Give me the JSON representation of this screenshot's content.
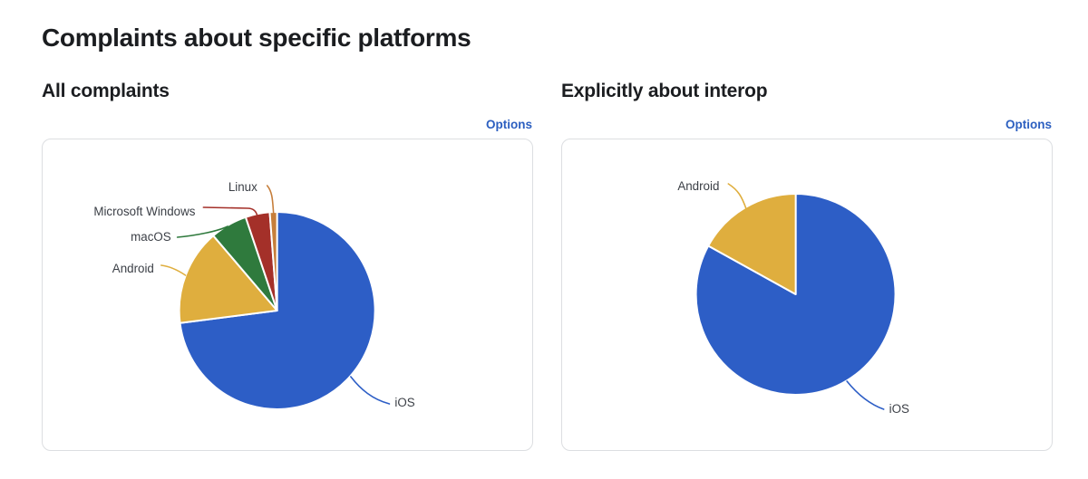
{
  "page": {
    "title": "Complaints about specific platforms"
  },
  "sections": [
    {
      "title": "All complaints",
      "options_label": "Options"
    },
    {
      "title": "Explicitly about interop",
      "options_label": "Options"
    }
  ],
  "colors": {
    "link_blue": "#2c5fc0",
    "ios_blue": "#2d5ec6",
    "android_yellow": "#dfae3e",
    "macos_green": "#2f7a3d",
    "windows_red": "#a43029",
    "linux_orange": "#c67e3b",
    "card_border": "#dcdee1",
    "label_text": "#3b3f46"
  },
  "chart_data": [
    {
      "type": "pie",
      "title": "All complaints",
      "units": "percent (estimated from arc angles)",
      "start_angle": "12 o'clock, clockwise",
      "legend_position": "outside labels with leader lines",
      "slices": [
        {
          "label": "iOS",
          "value": 73.0,
          "color": "#2d5ec6"
        },
        {
          "label": "Android",
          "value": 15.7,
          "color": "#dfae3e"
        },
        {
          "label": "macOS",
          "value": 6.1,
          "color": "#2f7a3d"
        },
        {
          "label": "Microsoft Windows",
          "value": 4.0,
          "color": "#a43029"
        },
        {
          "label": "Linux",
          "value": 1.2,
          "color": "#c67e3b"
        }
      ]
    },
    {
      "type": "pie",
      "title": "Explicitly about interop",
      "units": "percent (estimated from arc angles)",
      "start_angle": "12 o'clock, clockwise",
      "legend_position": "outside labels with leader lines",
      "slices": [
        {
          "label": "iOS",
          "value": 83.0,
          "color": "#2d5ec6"
        },
        {
          "label": "Android",
          "value": 17.0,
          "color": "#dfae3e"
        }
      ]
    }
  ]
}
